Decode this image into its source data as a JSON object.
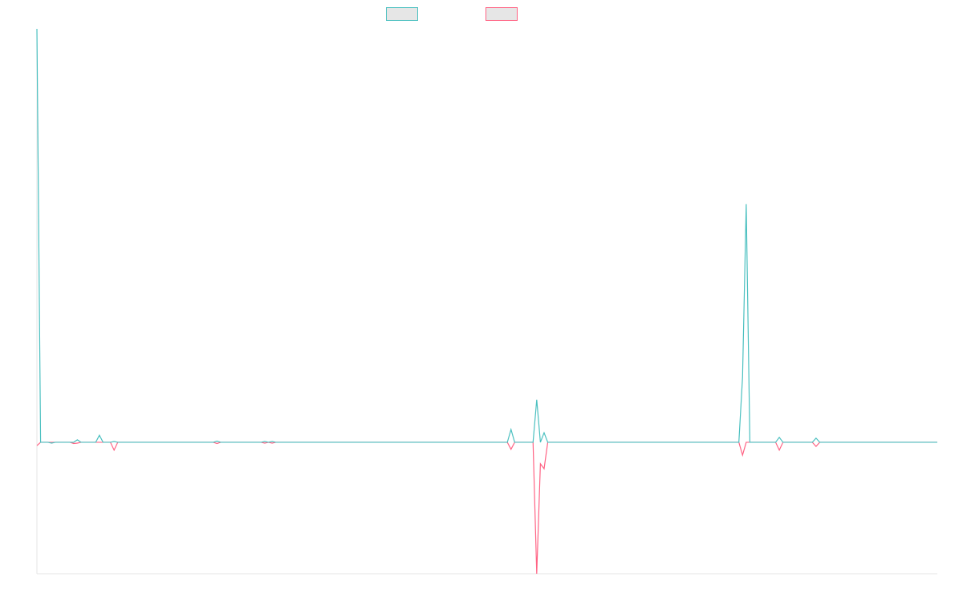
{
  "chart_data": {
    "type": "line",
    "categories": [
      null,
      null,
      null,
      null,
      null,
      null,
      null,
      null,
      null,
      null,
      null,
      null,
      null,
      null,
      null,
      null,
      null,
      null,
      null,
      null,
      null,
      null,
      null,
      null,
      null,
      null,
      null,
      null,
      null,
      null,
      null,
      null,
      null,
      null,
      null,
      null,
      null,
      null,
      null,
      null,
      null,
      null,
      null,
      null,
      null,
      null,
      null,
      null,
      null,
      null,
      null,
      null,
      null,
      null,
      null,
      null,
      null,
      null,
      null,
      null,
      null,
      null,
      null,
      null,
      null,
      null,
      null,
      null,
      null,
      null,
      null,
      null,
      null,
      null,
      null,
      null,
      null,
      null,
      null,
      null,
      null,
      null,
      null,
      null,
      null,
      null,
      null,
      null,
      null,
      null,
      null,
      null,
      null,
      null,
      null,
      null,
      null,
      null,
      null,
      null,
      null,
      null,
      null,
      null,
      null,
      null,
      null,
      null,
      null,
      null,
      null,
      null,
      null,
      null,
      null,
      null,
      null,
      null,
      null,
      null,
      null,
      null,
      null,
      null,
      null,
      null,
      null,
      null,
      null,
      null,
      null,
      null,
      null,
      null,
      null,
      null,
      null,
      null,
      null,
      null,
      null,
      null,
      null,
      null,
      null,
      null,
      null,
      null,
      null,
      null,
      null,
      null,
      null,
      null,
      null,
      null,
      null,
      null,
      null,
      null,
      null,
      null,
      null,
      null,
      null,
      null,
      null,
      null,
      null,
      null,
      null,
      null,
      null,
      null,
      null,
      null,
      null,
      null,
      null,
      null,
      null,
      null,
      null,
      null,
      null,
      null,
      null,
      null,
      null,
      null,
      null,
      null,
      null,
      null,
      null,
      null,
      null,
      null,
      null,
      null,
      null,
      null,
      null,
      null,
      null,
      null,
      null,
      null,
      null,
      null,
      null,
      null,
      null,
      null,
      null,
      null,
      null,
      null,
      null,
      null,
      null,
      null,
      null,
      null,
      null,
      null,
      null,
      null,
      null,
      null,
      null,
      null,
      null,
      null,
      null,
      null,
      null,
      null,
      null,
      null,
      null,
      null,
      null,
      null,
      null,
      null
    ],
    "ylim": [
      -31.8,
      100
    ],
    "series": [
      {
        "color": "#ff6384",
        "values": [
          -0.8,
          0,
          0,
          0,
          0,
          0,
          0,
          0,
          0,
          0,
          -0.3,
          -0.2,
          0,
          0,
          0,
          0,
          0,
          0,
          0,
          0,
          0,
          -1.9,
          0,
          0,
          0,
          0,
          0,
          0,
          0,
          0,
          0,
          0,
          0,
          0,
          0,
          0,
          0,
          0,
          0,
          0,
          0,
          0,
          0,
          0,
          0,
          0,
          0,
          0,
          0,
          -0.3,
          0,
          0,
          0,
          0,
          0,
          0,
          0,
          0,
          0,
          0,
          0,
          0,
          -0.2,
          0,
          -0.2,
          0,
          0,
          0,
          0,
          0,
          0,
          0,
          0,
          0,
          0,
          0,
          0,
          0,
          0,
          0,
          0,
          0,
          0,
          0,
          0,
          0,
          0,
          0,
          0,
          0,
          0,
          0,
          0,
          0,
          0,
          0,
          0,
          0,
          0,
          0,
          0,
          0,
          0,
          0,
          0,
          0,
          0,
          0,
          0,
          0,
          0,
          0,
          0,
          0,
          0,
          0,
          0,
          0,
          0,
          0,
          0,
          0,
          0,
          0,
          0,
          0,
          0,
          0,
          0,
          -1.7,
          0,
          0,
          0,
          0,
          0,
          0,
          -31.8,
          -5.2,
          -6.4,
          0,
          0,
          0,
          0,
          0,
          0,
          0,
          0,
          0,
          0,
          0,
          0,
          0,
          0,
          0,
          0,
          0,
          0,
          0,
          0,
          0,
          0,
          0,
          0,
          0,
          0,
          0,
          0,
          0,
          0,
          0,
          0,
          0,
          0,
          0,
          0,
          0,
          0,
          0,
          0,
          0,
          0,
          0,
          0,
          0,
          0,
          0,
          0,
          0,
          0,
          0,
          0,
          0,
          -3.1,
          0,
          0,
          0,
          0,
          0,
          0,
          0,
          0,
          0,
          -1.9,
          0,
          0,
          0,
          0,
          0,
          0,
          0,
          0,
          0,
          -1.0,
          0,
          0,
          0,
          0,
          0,
          0,
          0,
          0,
          0,
          0,
          0,
          0,
          0,
          0,
          0,
          0,
          0,
          0,
          0,
          0,
          0,
          0,
          0,
          0,
          0,
          0,
          0,
          0,
          0,
          0,
          0,
          0,
          0
        ]
      },
      {
        "color": "#4bc0c0",
        "values": [
          100,
          0,
          0,
          0,
          -0.2,
          0,
          0,
          0,
          0,
          0,
          0,
          0.6,
          0,
          0,
          0,
          0,
          0,
          1.7,
          0,
          0,
          0,
          0.2,
          0,
          0,
          0,
          0,
          0,
          0,
          0,
          0,
          0,
          0,
          0,
          0,
          0,
          0,
          0,
          0,
          0,
          0,
          0,
          0,
          0,
          0,
          0,
          0,
          0,
          0,
          0,
          0.3,
          0,
          0,
          0,
          0,
          0,
          0,
          0,
          0,
          0,
          0,
          0,
          0,
          0.2,
          0,
          0.2,
          0,
          0,
          0,
          0,
          0,
          0,
          0,
          0,
          0,
          0,
          0,
          0,
          0,
          0,
          0,
          0,
          0,
          0,
          0,
          0,
          0,
          0,
          0,
          0,
          0,
          0,
          0,
          0,
          0,
          0,
          0,
          0,
          0,
          0,
          0,
          0,
          0,
          0,
          0,
          0,
          0,
          0,
          0,
          0,
          0,
          0,
          0,
          0,
          0,
          0,
          0,
          0,
          0,
          0,
          0,
          0,
          0,
          0,
          0,
          0,
          0,
          0,
          0,
          0,
          3.1,
          0,
          0,
          0,
          0,
          0,
          0,
          10.3,
          0,
          2.3,
          0,
          0,
          0,
          0,
          0,
          0,
          0,
          0,
          0,
          0,
          0,
          0,
          0,
          0,
          0,
          0,
          0,
          0,
          0,
          0,
          0,
          0,
          0,
          0,
          0,
          0,
          0,
          0,
          0,
          0,
          0,
          0,
          0,
          0,
          0,
          0,
          0,
          0,
          0,
          0,
          0,
          0,
          0,
          0,
          0,
          0,
          0,
          0,
          0,
          0,
          0,
          0,
          0,
          15.7,
          57.6,
          0,
          0,
          0,
          0,
          0,
          0,
          0,
          0,
          1.2,
          0,
          0,
          0,
          0,
          0,
          0,
          0,
          0,
          0,
          1.0,
          0,
          0,
          0,
          0,
          0,
          0,
          0,
          0,
          0,
          0,
          0,
          0,
          0,
          0,
          0,
          0,
          0,
          0,
          0,
          0,
          0,
          0,
          0,
          0,
          0,
          0,
          0,
          0,
          0,
          0,
          0,
          0,
          0
        ]
      }
    ]
  }
}
